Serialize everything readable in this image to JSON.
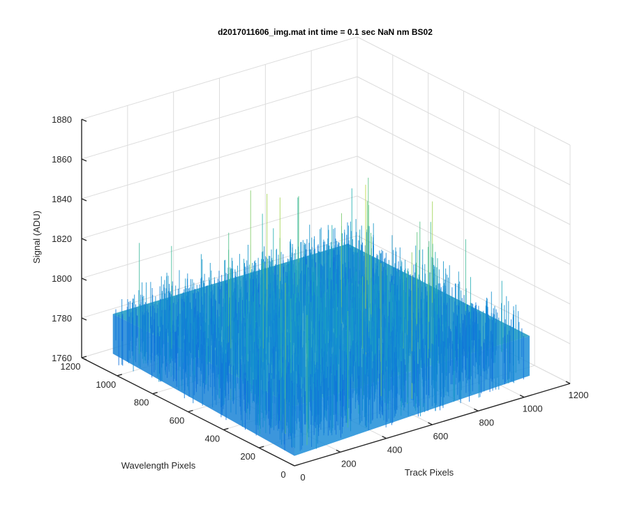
{
  "chart_data": {
    "type": "surface",
    "title": "d2017011606_img.mat int time = 0.1 sec  NaN nm BS02",
    "xlabel": "Track Pixels",
    "ylabel": "Wavelength Pixels",
    "zlabel": "Signal (ADU)",
    "xlim": [
      0,
      1200
    ],
    "ylim": [
      0,
      1200
    ],
    "zlim": [
      1760,
      1880
    ],
    "xticks": [
      "0",
      "200",
      "400",
      "600",
      "800",
      "1000",
      "1200"
    ],
    "yticks": [
      "0",
      "200",
      "400",
      "600",
      "800",
      "1000",
      "1200"
    ],
    "zticks": [
      "1760",
      "1780",
      "1800",
      "1820",
      "1840",
      "1860",
      "1880"
    ],
    "grid": true,
    "colormap": "parula",
    "data_extent": {
      "x": [
        0,
        1024
      ],
      "y": [
        0,
        1024
      ]
    },
    "signal_summary": {
      "typical": 1790,
      "min": 1765,
      "max": 1865
    },
    "colors": {
      "low": "#0a6fe0",
      "mid": "#23b0b2",
      "high": "#e6e13a"
    }
  }
}
